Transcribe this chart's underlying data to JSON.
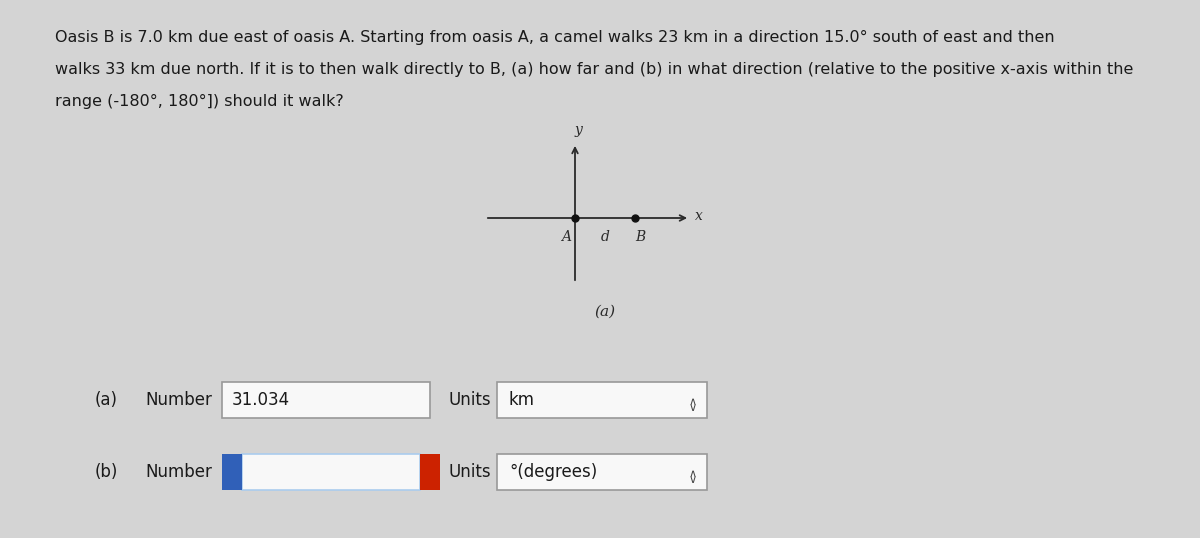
{
  "background_color": "#d4d4d4",
  "problem_text_line1": "Oasis B is 7.0 km due east of oasis A. Starting from oasis A, a camel walks 23 km in a direction 15.0° south of east and then",
  "problem_text_line2": "walks 33 km due north. If it is to then walk directly to B, (a) how far and (b) in what direction (relative to the positive x-axis within the",
  "problem_text_line3": "range (-180°, 180°]) should it walk?",
  "axis_label_y": "y",
  "axis_label_x": "x",
  "point_A_label": "A",
  "point_d_label": "d",
  "point_B_label": "B",
  "diagram_caption": "(a)",
  "part_a_label": "(a)",
  "part_a_number": "Number",
  "part_a_value": "31.034",
  "part_a_units_label": "Units",
  "part_a_units_value": "km",
  "part_b_label": "(b)",
  "part_b_number": "Number",
  "part_b_units_label": "Units",
  "part_b_units_value": "°(degrees)",
  "text_color": "#1a1a1a",
  "line_color": "#2a2a2a",
  "box_border_color": "#aaaaaa",
  "blue_box_color": "#3060b8",
  "red_box_color": "#cc2200",
  "white_box_fill": "#f8f8f8",
  "input_box_border": "#999999",
  "chevron_color": "#444444"
}
